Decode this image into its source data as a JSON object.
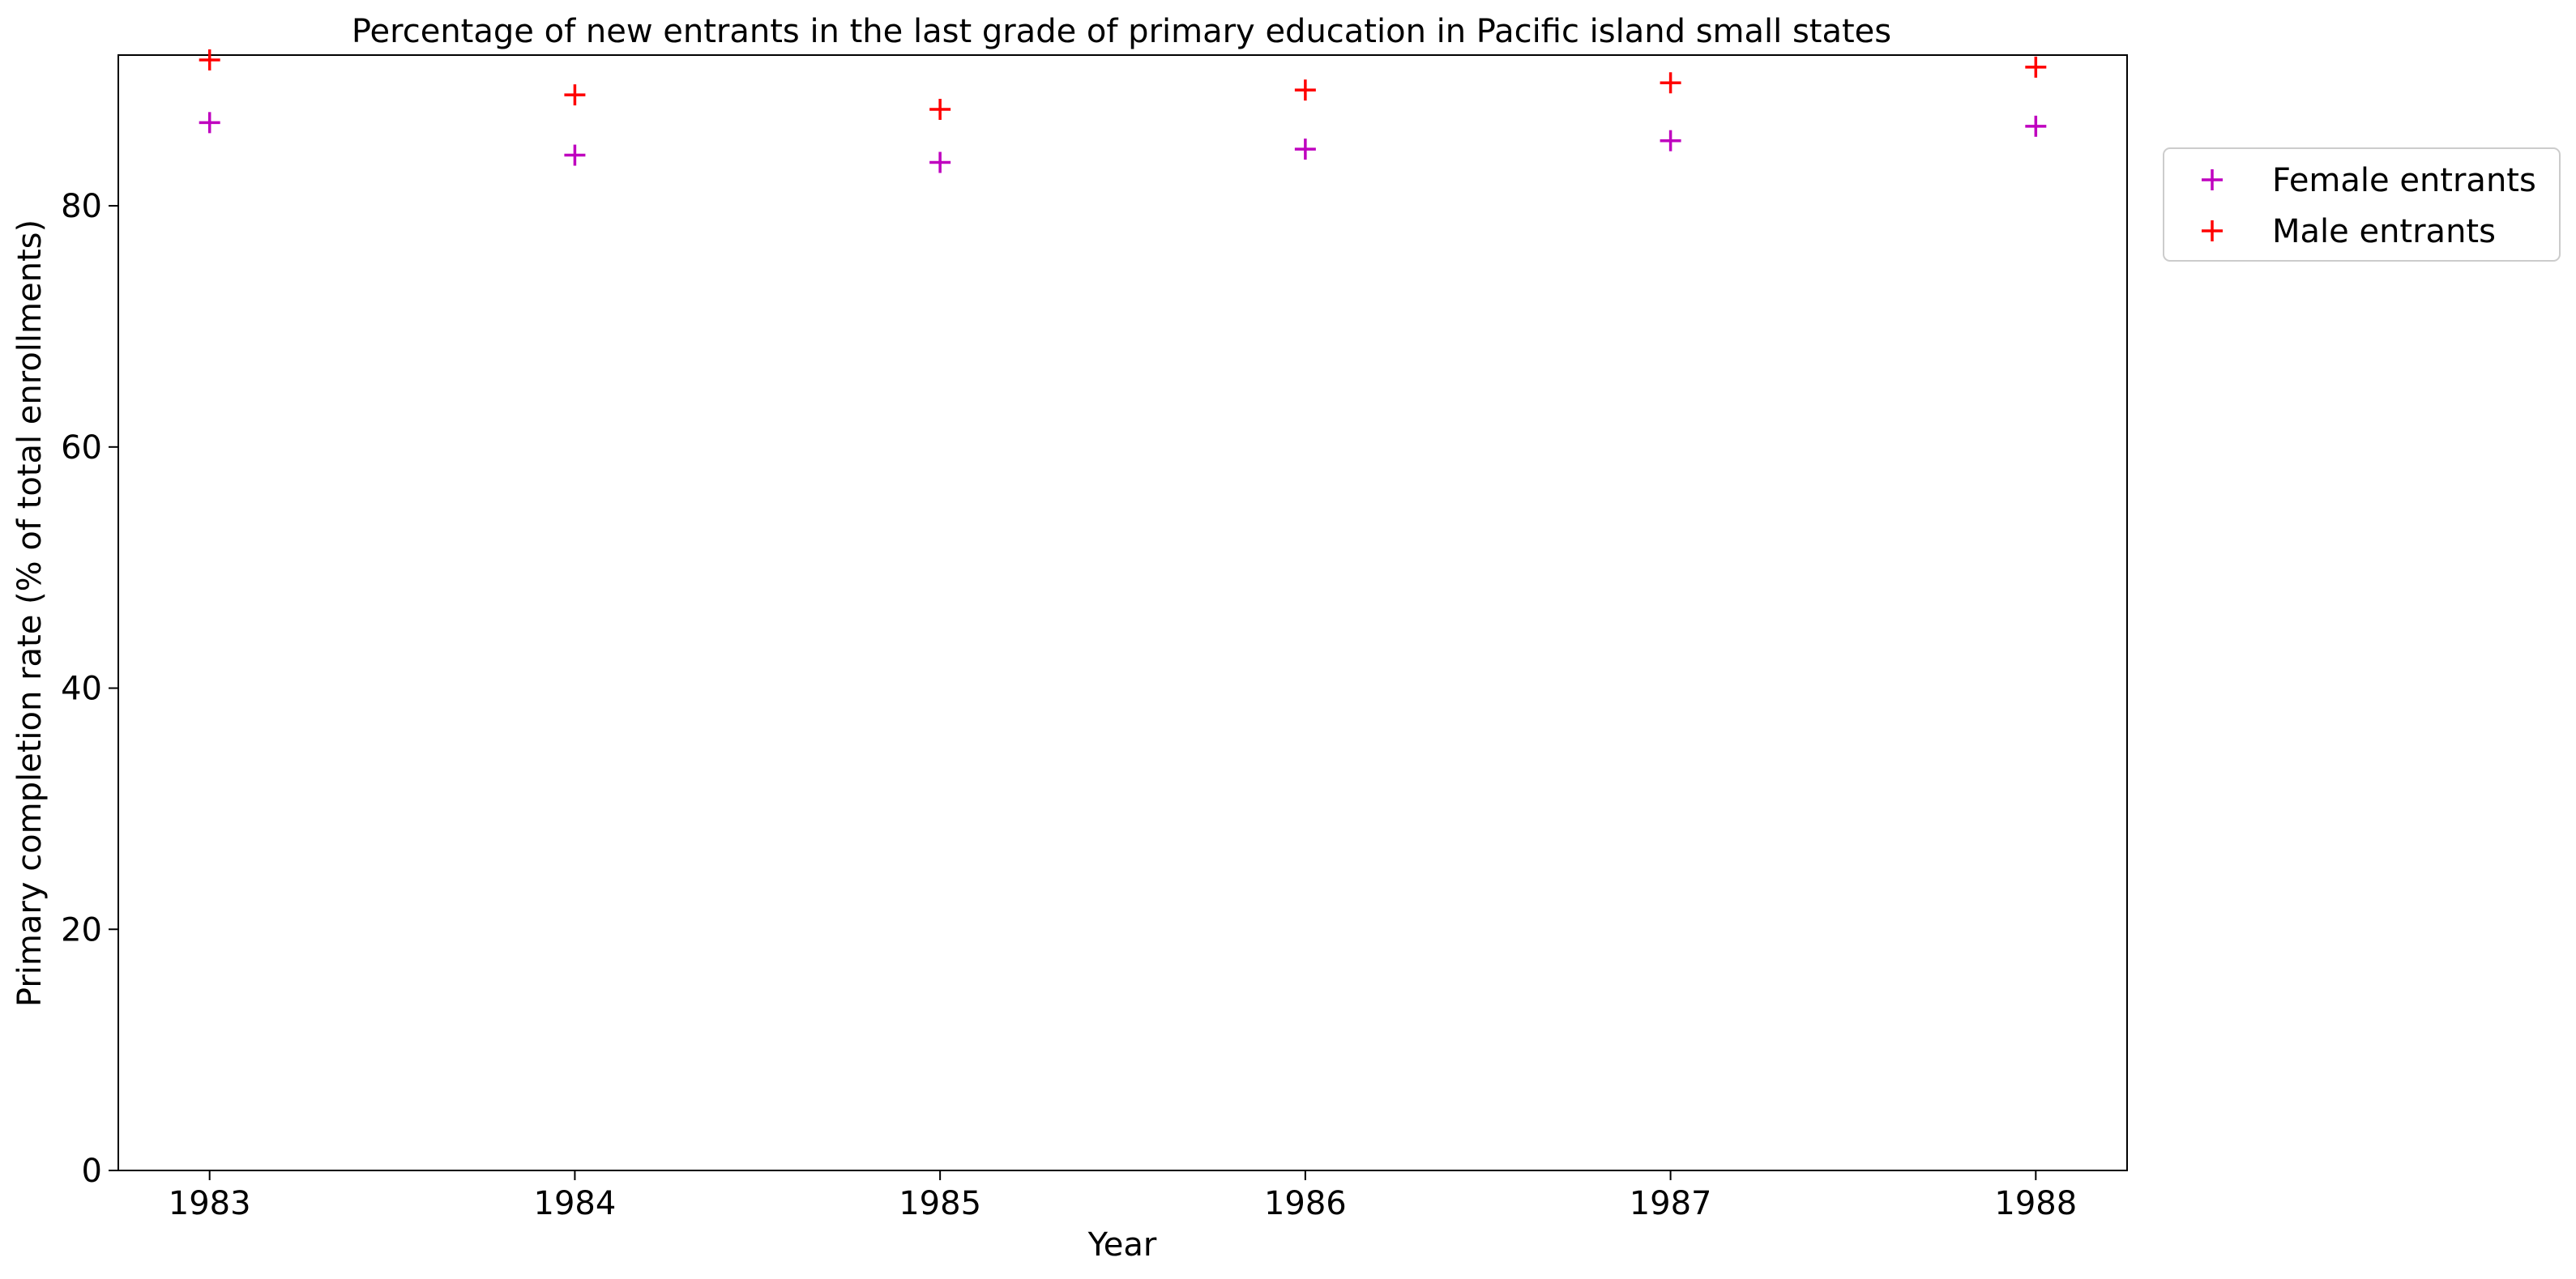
{
  "chart_data": {
    "type": "scatter",
    "title": "Percentage of new entrants in the last grade of primary education in Pacific island small states",
    "xlabel": "Year",
    "ylabel": "Primary completion rate (% of total enrollments)",
    "x": [
      "1983",
      "1984",
      "1985",
      "1986",
      "1987",
      "1988"
    ],
    "xlim": [
      1982.75,
      1988.25
    ],
    "ylim": [
      0,
      92.5
    ],
    "yticks": [
      0,
      20,
      40,
      60,
      80
    ],
    "grid": false,
    "marker": "plus",
    "legend_position": "outside-top-right",
    "series": [
      {
        "name": "Female entrants",
        "color": "#bf00bf",
        "values": [
          86.9,
          84.2,
          83.6,
          84.7,
          85.4,
          86.6
        ]
      },
      {
        "name": "Male entrants",
        "color": "#ff0000",
        "values": [
          92.1,
          89.2,
          88.0,
          89.6,
          90.2,
          91.5
        ]
      }
    ]
  }
}
